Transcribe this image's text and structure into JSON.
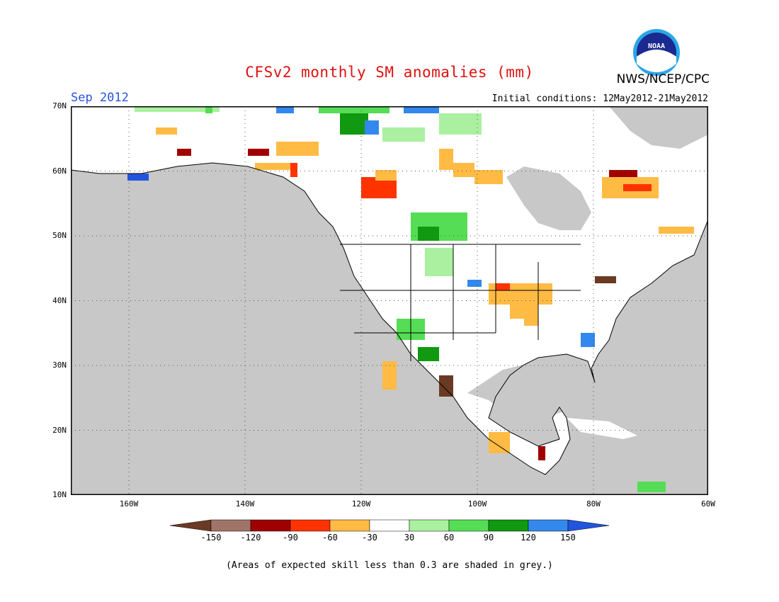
{
  "header": {
    "title": "CFSv2 monthly SM anomalies (mm)",
    "agency": "NWS/NCEP/CPC",
    "logo_text": "NOAA",
    "month": "Sep 2012",
    "initial_conditions": "Initial conditions: 12May2012-21May2012"
  },
  "map": {
    "lat_labels": [
      "70N",
      "60N",
      "50N",
      "40N",
      "30N",
      "20N",
      "10N"
    ],
    "lon_labels": [
      "160W",
      "140W",
      "120W",
      "100W",
      "80W",
      "60W"
    ],
    "background_grey": "#c8c8c8",
    "land_white": "#ffffff"
  },
  "colorbar": {
    "labels": [
      "-150",
      "-120",
      "-90",
      "-60",
      "-30",
      "30",
      "60",
      "90",
      "120",
      "150"
    ],
    "colors": [
      "#6b3a24",
      "#a07468",
      "#a00000",
      "#ff3300",
      "#ffbb44",
      "#ffffff",
      "#aaf0a0",
      "#55dd55",
      "#119911",
      "#3388ee",
      "#2255dd"
    ]
  },
  "footnote": "(Areas of expected skill less than 0.3 are shaded in grey.)"
}
